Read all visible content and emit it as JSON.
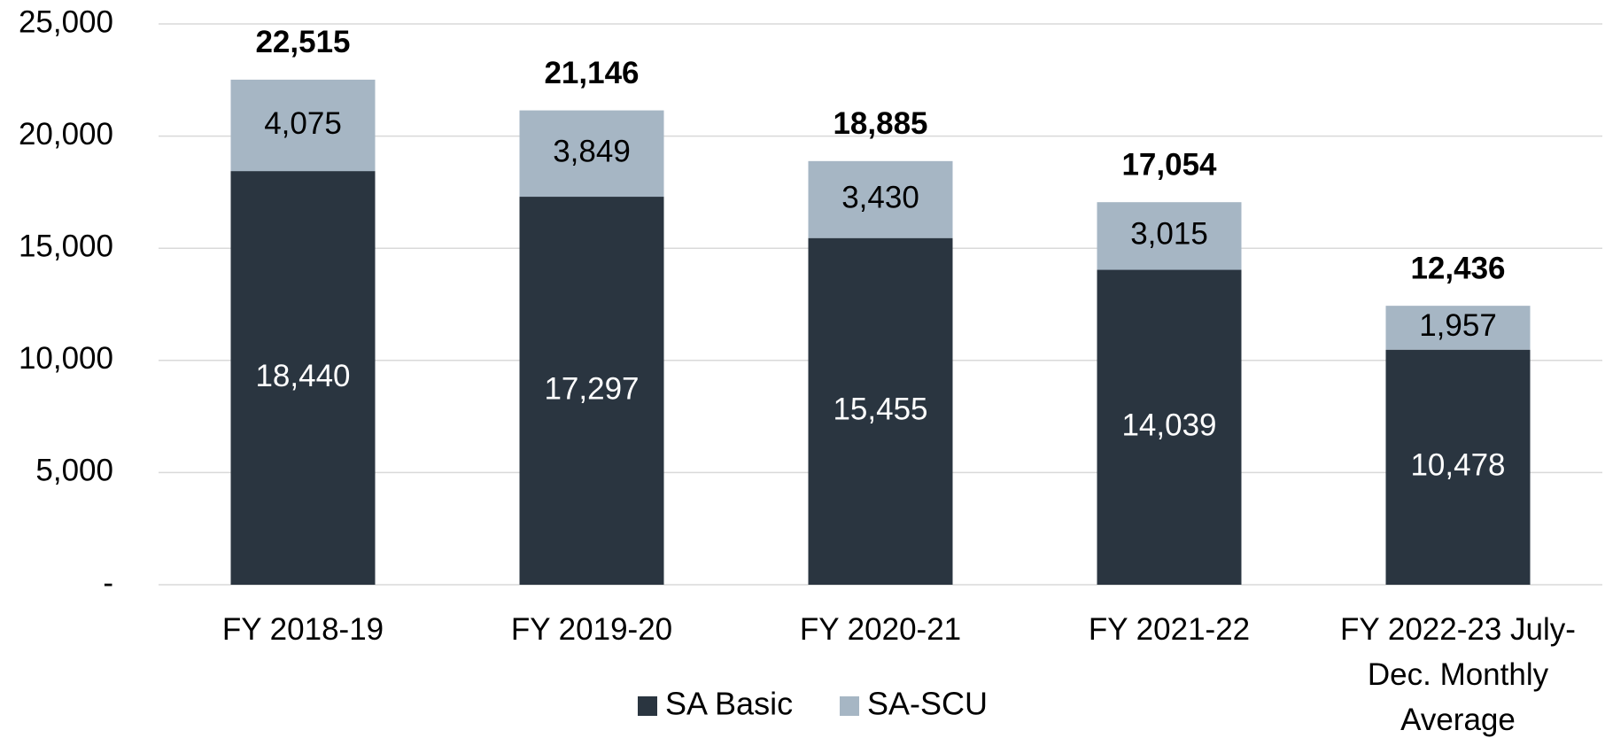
{
  "chart_data": {
    "type": "stacked_bar",
    "categories": [
      "FY 2018-19",
      "FY 2019-20",
      "FY 2020-21",
      "FY 2021-22",
      "FY 2022-23 July-Dec. Monthly Average"
    ],
    "series": [
      {
        "name": "SA Basic",
        "color": "#2a3540",
        "values": [
          18440,
          17297,
          15455,
          14039,
          10478
        ],
        "value_labels": [
          "18,440",
          "17,297",
          "15,455",
          "14,039",
          "10,478"
        ]
      },
      {
        "name": "SA-SCU",
        "color": "#a6b6c4",
        "values": [
          4075,
          3849,
          3430,
          3015,
          1957
        ],
        "value_labels": [
          "4,075",
          "3,849",
          "3,430",
          "3,015",
          "1,957"
        ]
      }
    ],
    "totals": {
      "values": [
        22515,
        21146,
        18885,
        17054,
        12436
      ],
      "value_labels": [
        "22,515",
        "21,146",
        "18,885",
        "17,054",
        "12,436"
      ]
    },
    "ylim": [
      0,
      25000
    ],
    "yticks": [
      {
        "value": 0,
        "label": "-"
      },
      {
        "value": 5000,
        "label": "5,000"
      },
      {
        "value": 10000,
        "label": "10,000"
      },
      {
        "value": 15000,
        "label": "15,000"
      },
      {
        "value": 20000,
        "label": "20,000"
      },
      {
        "value": 25000,
        "label": "25,000"
      }
    ],
    "grid": true,
    "legend": "bottom"
  }
}
